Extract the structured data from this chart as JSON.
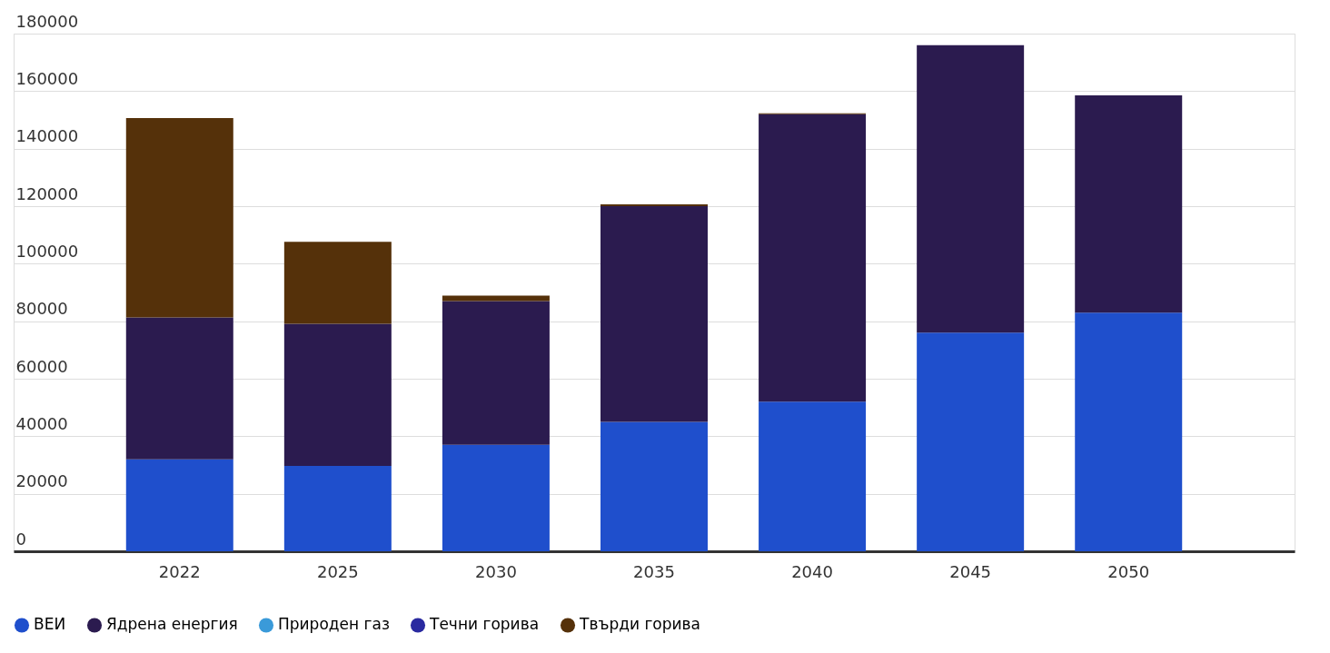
{
  "chart_data": {
    "type": "bar",
    "stacked": true,
    "categories": [
      "2022",
      "2025",
      "2030",
      "2035",
      "2040",
      "2045",
      "2050"
    ],
    "series": [
      {
        "name": "ВЕИ",
        "color": "#1f4fcc",
        "values": [
          32000,
          29700,
          37000,
          45000,
          52000,
          76000,
          83000
        ]
      },
      {
        "name": "Ядрена енергия",
        "color": "#2b1b4f",
        "values": [
          49300,
          49400,
          50000,
          75000,
          100000,
          100000,
          75500
        ]
      },
      {
        "name": "Природен газ",
        "color": "#3a9ad9",
        "values": [
          0,
          0,
          0,
          0,
          0,
          0,
          0
        ]
      },
      {
        "name": "Течни горива",
        "color": "#2a2aa0",
        "values": [
          0,
          0,
          0,
          0,
          0,
          0,
          0
        ]
      },
      {
        "name": "Твърди горива",
        "color": "#55310a",
        "values": [
          69300,
          28500,
          1900,
          600,
          300,
          0,
          0
        ]
      }
    ],
    "ylim": [
      0,
      180000
    ],
    "yticks": [
      0,
      20000,
      40000,
      60000,
      80000,
      100000,
      120000,
      140000,
      160000,
      180000
    ],
    "grid": "y",
    "legend": "bottom"
  }
}
